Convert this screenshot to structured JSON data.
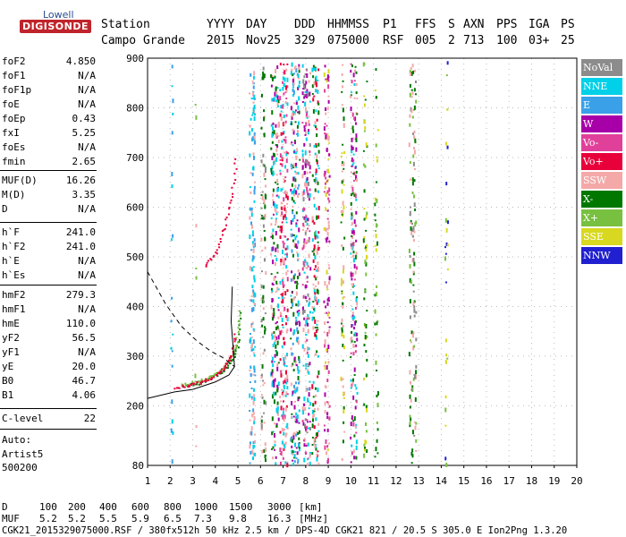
{
  "logo": {
    "top": "Lowell",
    "bottom": "DIGISONDE"
  },
  "header": {
    "labels": [
      "Station",
      "YYYY",
      "DAY",
      "DDD",
      "HHMMSS",
      "P1",
      "FFS",
      "S",
      "AXN",
      "PPS",
      "IGA",
      "PS"
    ],
    "values": [
      "Campo Grande",
      "2015",
      "Nov25",
      "329",
      "075000",
      "RSF",
      "005",
      "2",
      "713",
      "100",
      "03+",
      "25"
    ]
  },
  "params": [
    {
      "label": "foF2",
      "value": "4.850"
    },
    {
      "label": "foF1",
      "value": "N/A"
    },
    {
      "label": "foF1p",
      "value": "N/A"
    },
    {
      "label": "foE",
      "value": "N/A"
    },
    {
      "label": "foEp",
      "value": "0.43"
    },
    {
      "label": "fxI",
      "value": "5.25"
    },
    {
      "label": "foEs",
      "value": "N/A"
    },
    {
      "label": "fmin",
      "value": "2.65"
    },
    {
      "label": "MUF(D)",
      "value": "16.26"
    },
    {
      "label": "M(D)",
      "value": "3.35"
    },
    {
      "label": "D",
      "value": "N/A"
    },
    {
      "label": "h`F",
      "value": "241.0"
    },
    {
      "label": "h`F2",
      "value": "241.0"
    },
    {
      "label": "h`E",
      "value": "N/A"
    },
    {
      "label": "h`Es",
      "value": "N/A"
    },
    {
      "label": "hmF2",
      "value": "279.3"
    },
    {
      "label": "hmF1",
      "value": "N/A"
    },
    {
      "label": "hmE",
      "value": "110.0"
    },
    {
      "label": "yF2",
      "value": "56.5"
    },
    {
      "label": "yF1",
      "value": "N/A"
    },
    {
      "label": "yE",
      "value": "20.0"
    },
    {
      "label": "B0",
      "value": "46.7"
    },
    {
      "label": "B1",
      "value": "4.06"
    },
    {
      "label": "C-level",
      "value": "22"
    }
  ],
  "auto": [
    "Auto:",
    "Artist5",
    "500200"
  ],
  "legend": [
    {
      "label": "NoVal",
      "color": "#8c8c8c"
    },
    {
      "label": "NNE",
      "color": "#00d0e8"
    },
    {
      "label": "E",
      "color": "#3aa0e8"
    },
    {
      "label": "W",
      "color": "#a800a8"
    },
    {
      "label": "Vo-",
      "color": "#e0409a"
    },
    {
      "label": "Vo+",
      "color": "#e8003a"
    },
    {
      "label": "SSW",
      "color": "#f4a8a8"
    },
    {
      "label": "X-",
      "color": "#007800"
    },
    {
      "label": "X+",
      "color": "#78c040"
    },
    {
      "label": "SSE",
      "color": "#d8d820"
    },
    {
      "label": "NNW",
      "color": "#2020d0"
    }
  ],
  "chart_data": {
    "type": "scatter",
    "xlim": [
      1,
      20
    ],
    "ylim": [
      80,
      900
    ],
    "x_ticks": [
      1,
      2,
      3,
      4,
      5,
      6,
      7,
      8,
      9,
      10,
      11,
      12,
      13,
      14,
      15,
      16,
      17,
      18,
      19,
      20
    ],
    "y_ticks": [
      80,
      200,
      300,
      400,
      500,
      600,
      700,
      800,
      900
    ],
    "grid": true,
    "trace_o": [
      [
        2.2,
        238
      ],
      [
        2.8,
        243
      ],
      [
        3.3,
        248
      ],
      [
        3.8,
        258
      ],
      [
        4.2,
        270
      ],
      [
        4.5,
        285
      ],
      [
        4.7,
        305
      ],
      [
        4.85,
        345
      ]
    ],
    "trace_x": [
      [
        2.5,
        240
      ],
      [
        3.2,
        246
      ],
      [
        3.8,
        256
      ],
      [
        4.3,
        270
      ],
      [
        4.7,
        292
      ],
      [
        4.95,
        320
      ],
      [
        5.1,
        390
      ]
    ],
    "trace_o2": [
      [
        3.5,
        482
      ],
      [
        4.0,
        510
      ],
      [
        4.4,
        560
      ],
      [
        4.7,
        620
      ],
      [
        4.9,
        700
      ]
    ],
    "profile": [
      [
        1,
        215
      ],
      [
        2.2,
        228
      ],
      [
        3.0,
        233
      ],
      [
        4.0,
        248
      ],
      [
        4.6,
        262
      ],
      [
        4.85,
        279
      ],
      [
        4.8,
        310
      ],
      [
        4.7,
        370
      ],
      [
        4.75,
        440
      ]
    ],
    "dashed_topside": [
      [
        1,
        470
      ],
      [
        1.8,
        405
      ],
      [
        2.5,
        360
      ],
      [
        3.2,
        330
      ],
      [
        3.8,
        310
      ],
      [
        4.3,
        298
      ],
      [
        4.85,
        279
      ]
    ]
  },
  "footer": {
    "d_label": "D",
    "d_values": [
      "100",
      "200",
      "400",
      "600",
      "800",
      "1000",
      "1500",
      "3000",
      "[km]"
    ],
    "muf_label": "MUF",
    "muf_values": [
      "5.2",
      "5.2",
      "5.5",
      "5.9",
      "6.5",
      "7.3",
      "9.8",
      "16.3",
      "[MHz]"
    ],
    "info": "CGK21_2015329075000.RSF / 380fx512h 50 kHz 2.5 km / DPS-4D CGK21 821 / 20.5 S 305.0 E Ion2Png 1.3.20"
  }
}
